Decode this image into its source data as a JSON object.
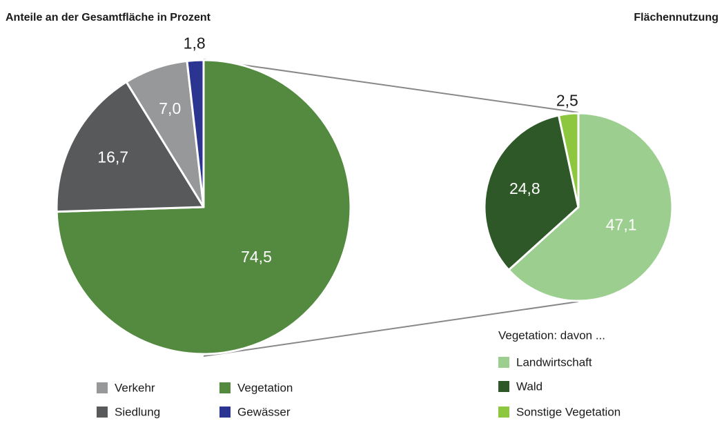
{
  "chart_data": [
    {
      "type": "pie",
      "title": "Flächennutzung",
      "subtitle": "Anteile an der Gesamtfläche in Prozent",
      "categories": [
        "Vegetation",
        "Siedlung",
        "Verkehr",
        "Gewässer"
      ],
      "values": [
        74.5,
        16.7,
        7.0,
        1.8
      ],
      "value_labels": [
        "74,5",
        "16,7",
        "7,0",
        "1,8"
      ],
      "colors": [
        "#538a40",
        "#58595b",
        "#97989a",
        "#2b3490"
      ]
    },
    {
      "type": "pie",
      "legend_title": "Vegetation: davon ...",
      "categories": [
        "Landwirtschaft",
        "Wald",
        "Sonstige Vegetation"
      ],
      "values": [
        47.1,
        24.8,
        2.5
      ],
      "value_labels": [
        "47,1",
        "24,8",
        "2,5"
      ],
      "colors": [
        "#9ccf8f",
        "#2e5828",
        "#8dc63f"
      ]
    }
  ]
}
